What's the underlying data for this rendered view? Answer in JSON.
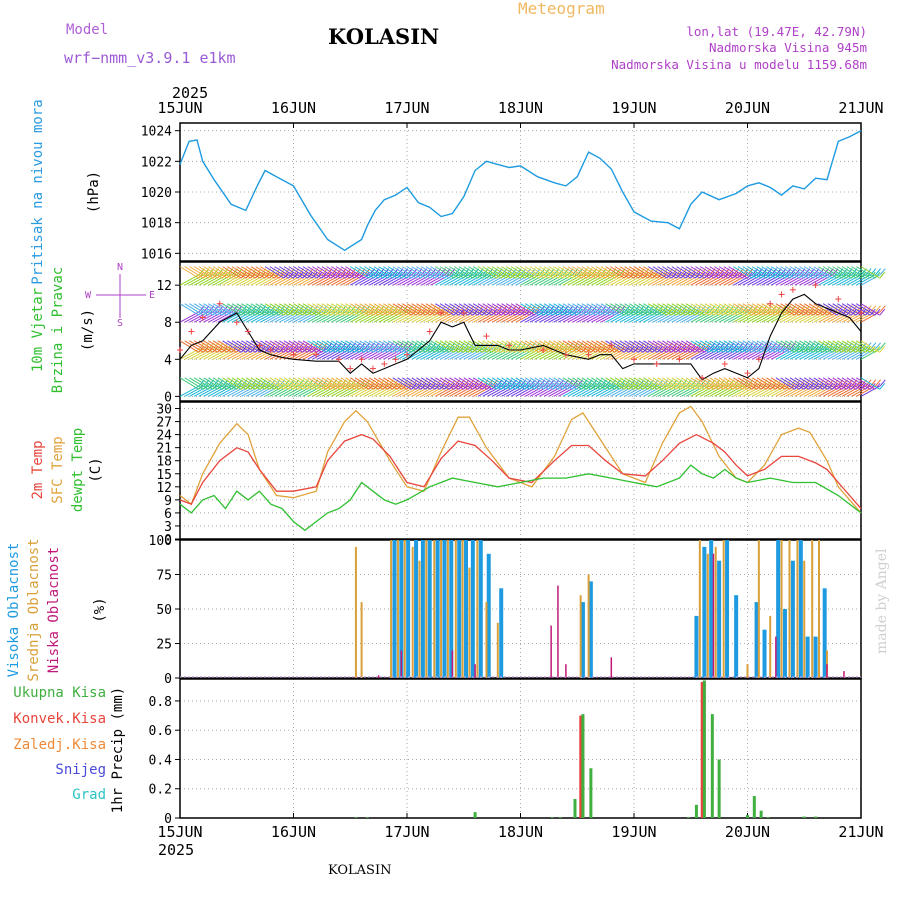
{
  "header": {
    "model_label": "Model",
    "model_name": "wrf−nmm_v3.9.1  e1km",
    "title": "KOLASIN",
    "meteogram_label": "Meteogram",
    "lonlat": "lon,lat (19.47E, 42.79N)",
    "elevation": "Nadmorska Visina 945m",
    "model_elevation": "Nadmorska Visina u modelu 1159.68m",
    "year_top": "2025",
    "year_bottom": "2025",
    "footer_station": "KOLASIN",
    "watermark": "made by Angel"
  },
  "colors": {
    "pressure": "#1e9be0",
    "temp2m": "#e8453c",
    "sfc": "#e0a23a",
    "dew": "#2fbf2f",
    "high_cloud": "#1e9be0",
    "mid_cloud": "#d9a03a",
    "low_cloud": "#c2187a",
    "total_precip": "#3faf3f",
    "conv_precip": "#e8453c",
    "wind_line": "#000000",
    "gust": "#ee4444"
  },
  "chart_data": [
    {
      "type": "line",
      "panel": "pressure",
      "ylabel": [
        "Pritisak na nivou mora",
        "(hPa)"
      ],
      "x_ticks": [
        "15JUN",
        "16JUN",
        "17JUN",
        "18JUN",
        "19JUN",
        "20JUN",
        "21JUN"
      ],
      "ylim": [
        1015.5,
        1024.5
      ],
      "y_ticks": [
        1016,
        1018,
        1020,
        1022,
        1024
      ],
      "grid": true,
      "series": [
        {
          "x": [
            0,
            0.08,
            0.15,
            0.2,
            0.3,
            0.45,
            0.58,
            0.68,
            0.75,
            0.85,
            1.0,
            1.15,
            1.3,
            1.45,
            1.6,
            1.65,
            1.72,
            1.8,
            1.9,
            2.0,
            2.1,
            2.2,
            2.3,
            2.4,
            2.5,
            2.6,
            2.7,
            2.8,
            2.9,
            3.0,
            3.15,
            3.3,
            3.4,
            3.5,
            3.6,
            3.7,
            3.8,
            3.9,
            4.0,
            4.15,
            4.3,
            4.4,
            4.5,
            4.6,
            4.75,
            4.9,
            5.0,
            5.1,
            5.2,
            5.3,
            5.4,
            5.5,
            5.6,
            5.7,
            5.8,
            5.9,
            6.0
          ],
          "values": [
            1021.8,
            1023.3,
            1023.4,
            1022.0,
            1020.8,
            1019.2,
            1018.8,
            1020.4,
            1021.4,
            1021.0,
            1020.4,
            1018.5,
            1016.9,
            1016.2,
            1016.9,
            1017.8,
            1018.8,
            1019.5,
            1019.8,
            1020.3,
            1019.3,
            1019.0,
            1018.4,
            1018.6,
            1019.7,
            1021.4,
            1022.0,
            1021.8,
            1021.6,
            1021.7,
            1021.0,
            1020.6,
            1020.4,
            1021.0,
            1022.6,
            1022.2,
            1021.5,
            1020.0,
            1018.7,
            1018.1,
            1018.0,
            1017.6,
            1019.2,
            1020.0,
            1019.5,
            1019.9,
            1020.4,
            1020.6,
            1020.3,
            1019.8,
            1020.4,
            1020.2,
            1020.9,
            1020.8,
            1023.3,
            1023.6,
            1024.0
          ]
        }
      ]
    },
    {
      "type": "line",
      "panel": "wind",
      "ylabel": [
        "10m Vjetar",
        "Brzina i Pravac",
        "(m/s)"
      ],
      "compass": [
        "N",
        "W",
        "E",
        "S"
      ],
      "ylim": [
        -0.5,
        14.5
      ],
      "y_ticks": [
        0,
        4,
        8,
        12
      ],
      "barb_levels": [
        0,
        2,
        4,
        6,
        8,
        10,
        12,
        14
      ],
      "grid": true,
      "series": [
        {
          "name": "speed",
          "x": [
            0,
            0.1,
            0.2,
            0.35,
            0.5,
            0.6,
            0.7,
            0.8,
            0.9,
            1.0,
            1.2,
            1.4,
            1.5,
            1.6,
            1.7,
            1.8,
            1.9,
            2.0,
            2.1,
            2.2,
            2.3,
            2.4,
            2.5,
            2.6,
            2.7,
            2.8,
            2.9,
            3.0,
            3.2,
            3.4,
            3.6,
            3.7,
            3.8,
            3.9,
            4.0,
            4.2,
            4.4,
            4.5,
            4.6,
            4.7,
            4.8,
            5.0,
            5.1,
            5.2,
            5.3,
            5.4,
            5.5,
            5.6,
            5.7,
            5.8,
            5.9,
            6.0
          ],
          "values": [
            4,
            5.5,
            6,
            8,
            9,
            7,
            5,
            4.5,
            4.2,
            4,
            3.8,
            3.8,
            2.5,
            3.5,
            2.5,
            3,
            3.5,
            4,
            5,
            6,
            8,
            7.5,
            8,
            5.5,
            5.5,
            5.5,
            5,
            5,
            5.5,
            4.5,
            4,
            4.5,
            4.5,
            3,
            3.5,
            3.5,
            3.5,
            3.5,
            1.8,
            2.5,
            3,
            2,
            3,
            6.5,
            9,
            10.5,
            11,
            10,
            9.5,
            9,
            8.5,
            7
          ]
        },
        {
          "name": "gust",
          "x": [
            0,
            0.1,
            0.2,
            0.35,
            0.5,
            0.6,
            0.7,
            0.8,
            1.0,
            1.2,
            1.4,
            1.5,
            1.6,
            1.7,
            1.8,
            1.9,
            2.0,
            2.2,
            2.3,
            2.5,
            2.7,
            2.9,
            3.2,
            3.4,
            3.6,
            3.8,
            4.0,
            4.2,
            4.4,
            4.6,
            4.8,
            5.0,
            5.1,
            5.2,
            5.3,
            5.4,
            5.6,
            5.8,
            6.0
          ],
          "values": [
            5,
            7,
            8.5,
            10,
            8,
            7,
            5.5,
            5,
            4.5,
            4.5,
            4,
            3,
            4,
            3,
            3.5,
            4,
            4.5,
            7,
            9,
            9,
            6.5,
            5.5,
            5,
            4.5,
            4.5,
            5.5,
            4,
            3.5,
            4,
            2,
            3.5,
            2.5,
            4,
            10,
            11,
            11.5,
            12,
            10.5,
            9
          ]
        }
      ]
    },
    {
      "type": "line",
      "panel": "temperature",
      "ylabel": [
        "2m Temp",
        "SFC Temp",
        "dewpt Temp",
        "(C)"
      ],
      "ylim": [
        0,
        31.5
      ],
      "y_ticks": [
        0,
        3,
        6,
        9,
        12,
        15,
        18,
        21,
        24,
        27,
        30
      ],
      "grid": true,
      "series": [
        {
          "name": "2m Temp",
          "x": [
            0,
            0.1,
            0.2,
            0.35,
            0.5,
            0.6,
            0.7,
            0.85,
            1.0,
            1.2,
            1.3,
            1.45,
            1.6,
            1.7,
            1.85,
            2.0,
            2.15,
            2.3,
            2.45,
            2.6,
            2.75,
            2.9,
            3.1,
            3.3,
            3.45,
            3.6,
            3.75,
            3.9,
            4.1,
            4.25,
            4.4,
            4.55,
            4.7,
            4.8,
            4.9,
            5.0,
            5.15,
            5.3,
            5.45,
            5.6,
            5.7,
            5.8,
            5.9,
            6.0
          ],
          "values": [
            9,
            8,
            13,
            18,
            21,
            20,
            16,
            11,
            11,
            12,
            18,
            22.5,
            24,
            23,
            19,
            13,
            12,
            18.5,
            22.5,
            21.5,
            18,
            14,
            13,
            18,
            21.5,
            21.5,
            18,
            15,
            14.5,
            18,
            22,
            24,
            22,
            20,
            17,
            14.5,
            16,
            19,
            19,
            17.5,
            16,
            13,
            10,
            7
          ]
        },
        {
          "name": "SFC Temp",
          "x": [
            0,
            0.1,
            0.2,
            0.35,
            0.5,
            0.6,
            0.7,
            0.85,
            1.0,
            1.2,
            1.3,
            1.45,
            1.55,
            1.65,
            1.85,
            2.0,
            2.15,
            2.3,
            2.45,
            2.55,
            2.7,
            2.9,
            3.1,
            3.3,
            3.45,
            3.55,
            3.7,
            3.9,
            4.1,
            4.25,
            4.4,
            4.5,
            4.6,
            4.75,
            4.9,
            5.0,
            5.15,
            5.3,
            5.45,
            5.55,
            5.7,
            5.8,
            5.9,
            6.0
          ],
          "values": [
            10,
            8,
            15,
            22,
            26.5,
            24,
            16,
            10,
            9.5,
            11,
            20,
            27,
            29.5,
            27,
            18,
            12,
            11,
            20,
            28,
            28,
            21,
            14,
            12,
            19,
            27.5,
            29,
            23,
            15,
            13,
            22,
            29,
            30.5,
            27,
            19,
            14,
            13,
            17,
            24,
            25.5,
            24.5,
            18,
            12,
            9,
            6
          ]
        },
        {
          "name": "dewpt Temp",
          "x": [
            0,
            0.1,
            0.2,
            0.3,
            0.4,
            0.5,
            0.6,
            0.7,
            0.8,
            0.9,
            1.0,
            1.1,
            1.2,
            1.3,
            1.4,
            1.5,
            1.6,
            1.7,
            1.8,
            1.9,
            2.0,
            2.2,
            2.4,
            2.6,
            2.8,
            3.0,
            3.2,
            3.4,
            3.6,
            3.8,
            4.0,
            4.2,
            4.4,
            4.5,
            4.6,
            4.7,
            4.8,
            4.9,
            5.0,
            5.2,
            5.4,
            5.6,
            5.8,
            6.0
          ],
          "values": [
            8,
            6,
            9,
            10,
            7,
            11,
            9,
            11,
            8,
            7,
            4,
            2,
            4,
            6,
            7,
            9,
            13,
            11,
            9,
            8,
            9,
            12,
            14,
            13,
            12,
            13,
            14,
            14,
            15,
            14,
            13,
            12,
            14,
            17,
            15,
            14,
            16,
            14,
            13,
            14,
            13,
            13,
            10,
            6
          ]
        }
      ]
    },
    {
      "type": "bar",
      "panel": "cloud",
      "ylabel": [
        "Visoka Oblacnost",
        "Srednja Oblacnost",
        "Niska Oblacnost",
        "(%)"
      ],
      "ylim": [
        0,
        100
      ],
      "y_ticks": [
        0,
        25,
        50,
        75,
        100
      ],
      "grid": true,
      "series": [
        {
          "name": "Visoka Oblacnost",
          "x": [
            1.89,
            1.95,
            2.01,
            2.08,
            2.14,
            2.2,
            2.27,
            2.33,
            2.39,
            2.46,
            2.52,
            2.58,
            2.65,
            2.72,
            2.83,
            3.55,
            3.62,
            4.55,
            4.62,
            4.68,
            4.75,
            4.82,
            4.9,
            5.08,
            5.15,
            5.27,
            5.33,
            5.4,
            5.47,
            5.53,
            5.6,
            5.68
          ],
          "values": [
            100,
            100,
            100,
            100,
            100,
            100,
            100,
            100,
            100,
            100,
            100,
            100,
            100,
            90,
            65,
            55,
            70,
            45,
            95,
            100,
            85,
            100,
            60,
            55,
            35,
            100,
            50,
            85,
            100,
            30,
            30,
            65
          ]
        },
        {
          "name": "Srednja Oblacnost",
          "x": [
            1.55,
            1.6,
            1.86,
            1.92,
            1.98,
            2.05,
            2.11,
            2.17,
            2.24,
            2.3,
            2.36,
            2.43,
            2.49,
            2.55,
            2.62,
            2.7,
            2.8,
            3.53,
            3.6,
            4.58,
            4.65,
            4.72,
            4.79,
            5.0,
            5.1,
            5.2,
            5.3,
            5.37,
            5.44,
            5.5,
            5.57,
            5.63,
            5.7
          ],
          "values": [
            95,
            55,
            100,
            100,
            100,
            95,
            85,
            100,
            100,
            100,
            100,
            100,
            100,
            80,
            100,
            55,
            40,
            60,
            75,
            100,
            90,
            95,
            100,
            10,
            100,
            45,
            100,
            100,
            100,
            85,
            100,
            100,
            20
          ]
        },
        {
          "name": "Niska Oblacnost",
          "x": [
            1.75,
            1.95,
            2.4,
            2.6,
            3.27,
            3.33,
            3.4,
            3.8,
            4.7,
            5.25,
            5.7,
            5.85
          ],
          "values": [
            2,
            20,
            20,
            10,
            38,
            67,
            10,
            15,
            90,
            30,
            10,
            5
          ]
        }
      ]
    },
    {
      "type": "bar",
      "panel": "precip",
      "ylabel": [
        "1hr Precip (mm)"
      ],
      "legend": [
        "Ukupna Kisa",
        "Konvek.Kisa",
        "Zaledj.Kisa",
        "Snijeg",
        "Grad"
      ],
      "legend_colors": [
        "#3faf3f",
        "#e8453c",
        "#f08a38",
        "#4a4ad8",
        "#2cc4c4"
      ],
      "ylim": [
        0,
        0.95
      ],
      "y_ticks": [
        0,
        0.2,
        0.4,
        0.6,
        0.8
      ],
      "grid": true,
      "series": [
        {
          "name": "Ukupna Kisa",
          "x": [
            1.55,
            1.65,
            2.6,
            3.28,
            3.35,
            3.48,
            3.55,
            3.62,
            4.48,
            4.55,
            4.62,
            4.69,
            4.75,
            5.0,
            5.06,
            5.12,
            5.18,
            5.5,
            5.6
          ],
          "values": [
            0.005,
            0.005,
            0.04,
            0.005,
            0.005,
            0.13,
            0.71,
            0.34,
            0.005,
            0.09,
            0.94,
            0.71,
            0.4,
            0.02,
            0.15,
            0.05,
            0.005,
            0.01,
            0.01
          ]
        },
        {
          "name": "Konvek.Kisa",
          "x": [
            3.54,
            4.61
          ],
          "values": [
            0.7,
            0.93
          ]
        }
      ]
    }
  ]
}
